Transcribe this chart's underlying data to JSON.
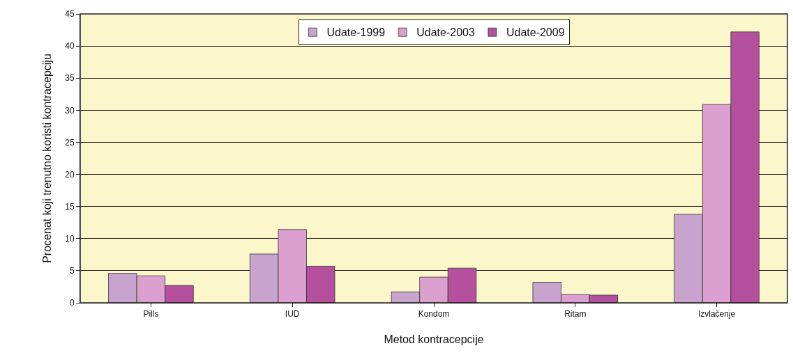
{
  "chart_data": {
    "type": "bar",
    "xlabel": "Metod kontracepcije",
    "ylabel": "Procenat koji trenutno koristi kontracepciju",
    "categories": [
      "Pills",
      "IUD",
      "Kondom",
      "Ritam",
      "Izvlačenje"
    ],
    "series": [
      {
        "name": "Udate-1999",
        "color": "#c7a3cd",
        "values": [
          4.6,
          7.6,
          1.7,
          3.2,
          13.8
        ]
      },
      {
        "name": "Udate-2003",
        "color": "#dba0cf",
        "values": [
          4.2,
          11.4,
          4.0,
          1.3,
          30.9
        ]
      },
      {
        "name": "Udate-2009",
        "color": "#b4509e",
        "values": [
          2.7,
          5.7,
          5.4,
          1.2,
          42.2
        ]
      }
    ],
    "ylim": [
      0,
      45
    ],
    "yticks": [
      0,
      5,
      10,
      15,
      20,
      25,
      30,
      35,
      40,
      45
    ],
    "grid": "y",
    "legend": "top"
  }
}
